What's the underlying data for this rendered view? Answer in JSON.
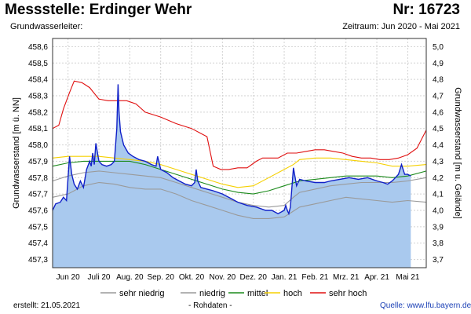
{
  "header": {
    "title": "Messstelle: Erdinger Wehr",
    "number": "Nr: 16723",
    "subtitle": "Grundwasserleiter:",
    "period": "Zeitraum: Jun 2020 - Mai 2021"
  },
  "footer": {
    "created": "erstellt:  21.05.2021",
    "raw": "- Rohdaten -",
    "source": "Quelle: www.lfu.bayern.de"
  },
  "chart_data": {
    "type": "line",
    "title": "",
    "xlabel": "",
    "ylabel": "Grundwasserstand [m ü. NN]",
    "ylabel_right": "Grundwasserstand [m u. Gelände]",
    "ylim": [
      457.25,
      458.65
    ],
    "y_ticks": [
      457.3,
      457.4,
      457.5,
      457.6,
      457.7,
      457.8,
      457.9,
      458.0,
      458.1,
      458.2,
      458.3,
      458.4,
      458.5,
      458.6
    ],
    "y_tick_labels": [
      "457,3",
      "457,4",
      "457,5",
      "457,6",
      "457,7",
      "457,8",
      "457,9",
      "458,0",
      "458,1",
      "458,2",
      "458,3",
      "458,4",
      "458,5",
      "458,6"
    ],
    "y_right_ticks": [
      "3,7",
      "3,8",
      "3,9",
      "4,0",
      "4,1",
      "4,2",
      "4,3",
      "4,4",
      "4,5",
      "4,6",
      "4,7",
      "4,8",
      "4,9",
      "5,0"
    ],
    "x_range": [
      0,
      12.1
    ],
    "x_ticks": [
      {
        "x": 0.5,
        "label": "Jun 20"
      },
      {
        "x": 1.5,
        "label": "Juli 20"
      },
      {
        "x": 2.5,
        "label": "Aug. 20"
      },
      {
        "x": 3.5,
        "label": "Sep. 20"
      },
      {
        "x": 4.5,
        "label": "Okt. 20"
      },
      {
        "x": 5.5,
        "label": "Nov. 20"
      },
      {
        "x": 6.5,
        "label": "Dez. 20"
      },
      {
        "x": 7.5,
        "label": "Jan. 21"
      },
      {
        "x": 8.5,
        "label": "Feb. 21"
      },
      {
        "x": 9.5,
        "label": "Mrz. 21"
      },
      {
        "x": 10.5,
        "label": "Apr. 21"
      },
      {
        "x": 11.5,
        "label": "Mai 21"
      }
    ],
    "grid": true,
    "legend_position": "bottom",
    "series": [
      {
        "name": "sehr niedrig",
        "color": "#9a9a9a",
        "x": [
          0,
          0.5,
          1.0,
          1.5,
          2.0,
          2.5,
          3.0,
          3.5,
          4.0,
          4.5,
          5.0,
          5.5,
          6.0,
          6.5,
          7.0,
          7.5,
          7.75,
          8.0,
          8.5,
          9.0,
          9.5,
          10.0,
          10.5,
          11.0,
          11.5,
          12.1
        ],
        "y": [
          457.68,
          457.7,
          457.75,
          457.77,
          457.76,
          457.74,
          457.73,
          457.73,
          457.7,
          457.66,
          457.63,
          457.6,
          457.57,
          457.55,
          457.55,
          457.56,
          457.59,
          457.62,
          457.64,
          457.66,
          457.68,
          457.67,
          457.66,
          457.65,
          457.66,
          457.65
        ]
      },
      {
        "name": "niedrig",
        "color": "#9a9a9a",
        "x": [
          0,
          0.5,
          1.0,
          1.5,
          2.0,
          2.5,
          3.0,
          3.5,
          4.0,
          4.5,
          5.0,
          5.5,
          6.0,
          6.5,
          7.0,
          7.5,
          7.8,
          8.0,
          8.5,
          9.0,
          9.5,
          10.0,
          10.5,
          11.0,
          11.5,
          12.1
        ],
        "y": [
          457.78,
          457.81,
          457.83,
          457.84,
          457.83,
          457.82,
          457.81,
          457.8,
          457.77,
          457.74,
          457.71,
          457.68,
          457.65,
          457.63,
          457.62,
          457.63,
          457.68,
          457.71,
          457.73,
          457.75,
          457.76,
          457.77,
          457.77,
          457.77,
          457.78,
          457.8
        ]
      },
      {
        "name": "mittel",
        "color": "#1b8a1b",
        "x": [
          0,
          0.5,
          1.0,
          1.5,
          2.0,
          2.5,
          3.0,
          3.5,
          4.0,
          4.5,
          5.0,
          5.5,
          6.0,
          6.5,
          7.0,
          7.5,
          8.0,
          8.5,
          9.0,
          9.5,
          10.0,
          10.5,
          11.0,
          11.5,
          12.1
        ],
        "y": [
          457.87,
          457.89,
          457.9,
          457.9,
          457.9,
          457.9,
          457.88,
          457.85,
          457.82,
          457.79,
          457.76,
          457.73,
          457.71,
          457.7,
          457.72,
          457.75,
          457.78,
          457.79,
          457.8,
          457.81,
          457.81,
          457.81,
          457.8,
          457.81,
          457.84
        ]
      },
      {
        "name": "hoch",
        "color": "#f5d000",
        "x": [
          0,
          0.5,
          1.0,
          1.5,
          2.0,
          2.5,
          3.0,
          3.5,
          4.0,
          4.5,
          5.0,
          5.5,
          6.0,
          6.5,
          7.0,
          7.5,
          7.8,
          8.0,
          8.5,
          9.0,
          9.5,
          10.0,
          10.5,
          11.0,
          11.5,
          12.1
        ],
        "y": [
          457.92,
          457.93,
          457.93,
          457.93,
          457.92,
          457.91,
          457.9,
          457.88,
          457.85,
          457.82,
          457.79,
          457.76,
          457.74,
          457.75,
          457.8,
          457.85,
          457.88,
          457.91,
          457.92,
          457.92,
          457.91,
          457.9,
          457.89,
          457.87,
          457.87,
          457.88
        ]
      },
      {
        "name": "sehr hoch",
        "color": "#e01010",
        "x": [
          0,
          0.2,
          0.35,
          0.55,
          0.7,
          0.95,
          1.2,
          1.5,
          1.8,
          2.1,
          2.4,
          2.7,
          3.0,
          3.5,
          4.0,
          4.5,
          5.0,
          5.2,
          5.45,
          5.7,
          6.0,
          6.3,
          6.6,
          6.8,
          7.0,
          7.3,
          7.6,
          7.9,
          8.2,
          8.5,
          8.8,
          9.1,
          9.4,
          9.7,
          10.0,
          10.3,
          10.6,
          10.9,
          11.2,
          11.5,
          11.8,
          12.1
        ],
        "y": [
          458.1,
          458.12,
          458.22,
          458.32,
          458.39,
          458.38,
          458.35,
          458.28,
          458.27,
          458.27,
          458.27,
          458.25,
          458.2,
          458.17,
          458.13,
          458.1,
          458.05,
          457.87,
          457.85,
          457.85,
          457.86,
          457.86,
          457.9,
          457.92,
          457.92,
          457.92,
          457.95,
          457.95,
          457.96,
          457.97,
          457.97,
          457.96,
          457.95,
          457.93,
          457.92,
          457.92,
          457.91,
          457.91,
          457.92,
          457.94,
          457.98,
          458.09
        ]
      },
      {
        "name": "Rohdaten",
        "color": "#1020c8",
        "fill": "#a9c9ee",
        "in_legend": false,
        "x": [
          0,
          0.1,
          0.25,
          0.35,
          0.45,
          0.5,
          0.55,
          0.62,
          0.7,
          0.8,
          0.9,
          1.0,
          1.1,
          1.2,
          1.25,
          1.3,
          1.35,
          1.4,
          1.5,
          1.6,
          1.75,
          1.9,
          2.0,
          2.08,
          2.12,
          2.15,
          2.2,
          2.3,
          2.45,
          2.6,
          2.8,
          3.0,
          3.2,
          3.35,
          3.4,
          3.5,
          3.7,
          3.9,
          4.1,
          4.3,
          4.5,
          4.6,
          4.65,
          4.7,
          4.8,
          5.0,
          5.2,
          5.5,
          5.8,
          6.0,
          6.3,
          6.6,
          6.9,
          7.1,
          7.3,
          7.5,
          7.55,
          7.6,
          7.65,
          7.7,
          7.8,
          7.9,
          8.0,
          8.2,
          8.5,
          8.8,
          9.0,
          9.3,
          9.6,
          9.9,
          10.2,
          10.5,
          10.7,
          10.85,
          11.0,
          11.1,
          11.2,
          11.3,
          11.4,
          11.5,
          11.6
        ],
        "y": [
          457.6,
          457.64,
          457.65,
          457.68,
          457.66,
          457.8,
          457.93,
          457.82,
          457.76,
          457.73,
          457.78,
          457.74,
          457.85,
          457.9,
          457.87,
          457.95,
          457.88,
          458.01,
          457.9,
          457.88,
          457.87,
          457.88,
          457.9,
          458.1,
          458.37,
          458.2,
          458.08,
          458.0,
          457.95,
          457.93,
          457.91,
          457.9,
          457.88,
          457.87,
          457.93,
          457.85,
          457.83,
          457.8,
          457.78,
          457.76,
          457.75,
          457.77,
          457.85,
          457.78,
          457.74,
          457.73,
          457.72,
          457.7,
          457.67,
          457.65,
          457.63,
          457.62,
          457.6,
          457.6,
          457.58,
          457.6,
          457.63,
          457.6,
          457.58,
          457.62,
          457.86,
          457.75,
          457.79,
          457.78,
          457.77,
          457.77,
          457.78,
          457.79,
          457.8,
          457.79,
          457.8,
          457.78,
          457.77,
          457.76,
          457.78,
          457.8,
          457.82,
          457.88,
          457.82,
          457.82,
          457.81
        ]
      }
    ]
  }
}
